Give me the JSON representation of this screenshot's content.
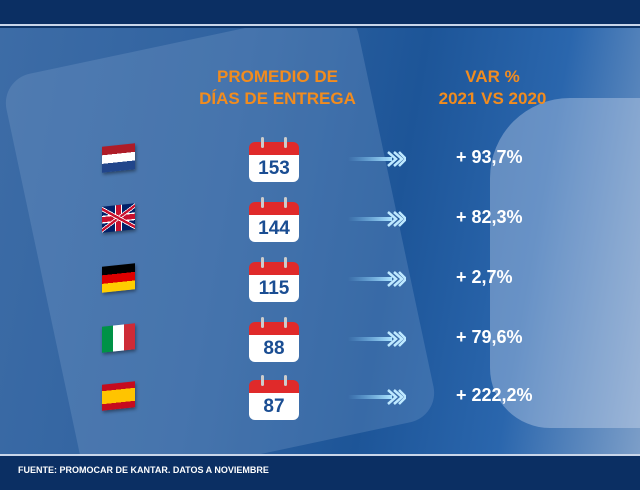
{
  "headers": {
    "col1_line1": "PROMEDIO DE",
    "col1_line2": "DÍAS DE ENTREGA",
    "col2_line1": "VAR %",
    "col2_line2": "2021 VS 2020"
  },
  "rows": [
    {
      "country": "Netherlands",
      "flag": "netherlands-flag",
      "days": "153",
      "var": "+ 93,7%"
    },
    {
      "country": "United Kingdom",
      "flag": "uk-flag",
      "days": "144",
      "var": "+ 82,3%"
    },
    {
      "country": "Germany",
      "flag": "germany-flag",
      "days": "115",
      "var": "+ 2,7%"
    },
    {
      "country": "Italy",
      "flag": "italy-flag",
      "days": "88",
      "var": "+ 79,6%"
    },
    {
      "country": "Spain",
      "flag": "spain-flag",
      "days": "87",
      "var": "+ 222,2%"
    }
  ],
  "footer": "FUENTE: PROMOCAR DE KANTAR. DATOS A NOVIEMBRE",
  "colors": {
    "header": "#f28c1e",
    "calendar_top": "#e02a2a",
    "number": "#1a4d92",
    "background": "#0b2f63"
  }
}
